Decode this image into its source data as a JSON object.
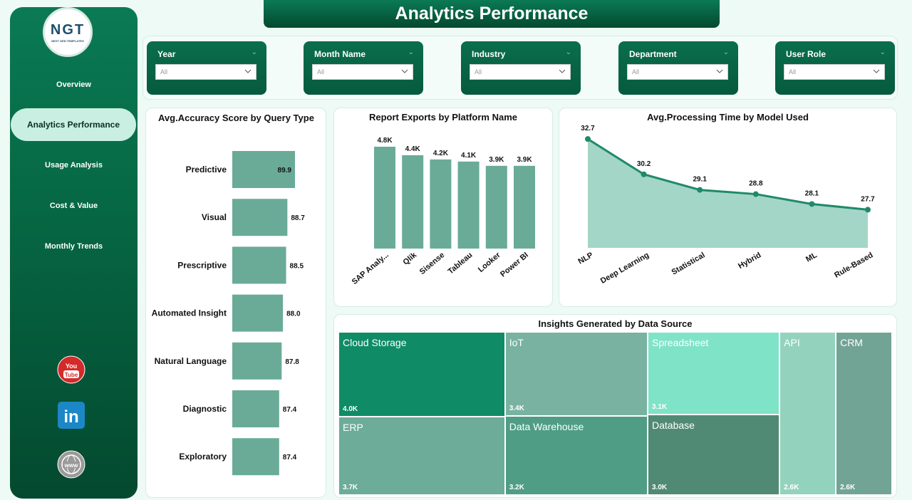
{
  "brand": {
    "logo_text": "NGT",
    "logo_subtext": "NEXT GEN TEMPLATES"
  },
  "header": {
    "title": "Analytics Performance"
  },
  "sidebar": {
    "items": [
      {
        "label": "Overview",
        "active": false
      },
      {
        "label": "Analytics Performance",
        "active": true
      },
      {
        "label": "Usage Analysis",
        "active": false
      },
      {
        "label": "Cost & Value",
        "active": false
      },
      {
        "label": "Monthly Trends",
        "active": false
      }
    ],
    "social": [
      {
        "icon": "youtube-icon",
        "text_top": "You",
        "text_bottom": "Tube"
      },
      {
        "icon": "linkedin-icon",
        "text": "in"
      },
      {
        "icon": "globe-icon",
        "text": "www"
      }
    ]
  },
  "filters": [
    {
      "label": "Year",
      "value": "All"
    },
    {
      "label": "Month Name",
      "value": "All"
    },
    {
      "label": "Industry",
      "value": "All"
    },
    {
      "label": "Department",
      "value": "All"
    },
    {
      "label": "User Role",
      "value": "All"
    }
  ],
  "colors": {
    "accent": "#0a7a55",
    "bar": "#6aab98",
    "line": "#1f8a6a",
    "area": "#a3d6c7"
  },
  "chart_data": [
    {
      "type": "bar",
      "orientation": "horizontal",
      "title": "Avg.Accuracy Score by Query Type",
      "categories": [
        "Predictive",
        "Visual",
        "Prescriptive",
        "Automated Insight",
        "Natural Language",
        "Diagnostic",
        "Exploratory"
      ],
      "values": [
        89.9,
        88.7,
        88.5,
        88.0,
        87.8,
        87.4,
        87.4
      ],
      "labels": [
        "89.9",
        "88.7",
        "88.5",
        "88.0",
        "87.8",
        "87.4",
        "87.4"
      ]
    },
    {
      "type": "bar",
      "title": "Report Exports by Platform Name",
      "categories": [
        "SAP Analy...",
        "Qlik",
        "Sisense",
        "Tableau",
        "Looker",
        "Power BI"
      ],
      "values": [
        4800,
        4400,
        4200,
        4100,
        3900,
        3900
      ],
      "labels": [
        "4.8K",
        "4.4K",
        "4.2K",
        "4.1K",
        "3.9K",
        "3.9K"
      ]
    },
    {
      "type": "area",
      "title": "Avg.Processing Time by Model Used",
      "categories": [
        "NLP",
        "Deep Learning",
        "Statistical",
        "Hybrid",
        "ML",
        "Rule-Based"
      ],
      "values": [
        32.7,
        30.2,
        29.1,
        28.8,
        28.1,
        27.7
      ],
      "labels": [
        "32.7",
        "30.2",
        "29.1",
        "28.8",
        "28.1",
        "27.7"
      ]
    },
    {
      "type": "treemap",
      "title": "Insights Generated by Data Source",
      "items": [
        {
          "name": "Cloud Storage",
          "value": 4000,
          "label": "4.0K"
        },
        {
          "name": "IoT",
          "value": 3400,
          "label": "3.4K"
        },
        {
          "name": "Spreadsheet",
          "value": 3100,
          "label": "3.1K"
        },
        {
          "name": "API",
          "value": 2600,
          "label": "2.6K"
        },
        {
          "name": "CRM",
          "value": 2600,
          "label": "2.6K"
        },
        {
          "name": "ERP",
          "value": 3700,
          "label": "3.7K"
        },
        {
          "name": "Data Warehouse",
          "value": 3200,
          "label": "3.2K"
        },
        {
          "name": "Database",
          "value": 3000,
          "label": "3.0K"
        }
      ]
    }
  ]
}
